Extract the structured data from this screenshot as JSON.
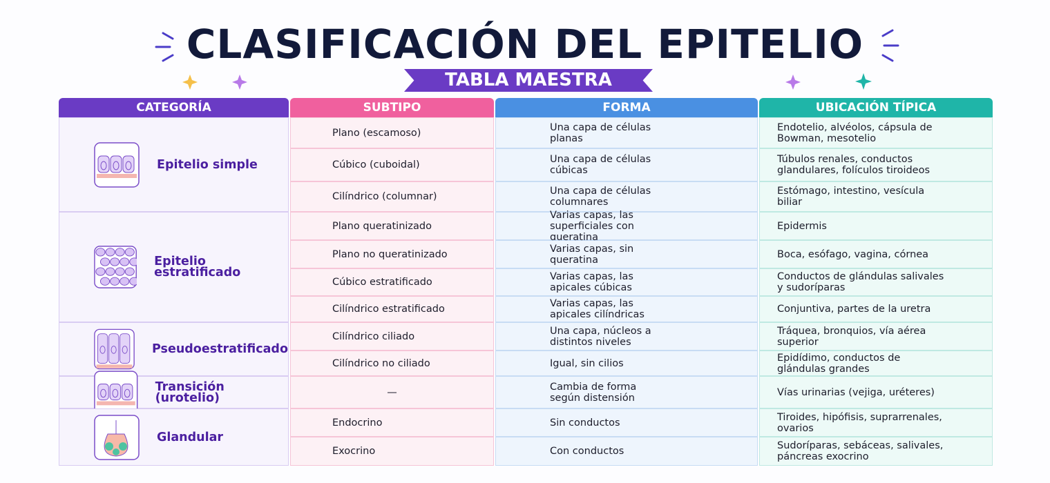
{
  "header": {
    "title": "CLASIFICACIÓN DEL EPITELIO",
    "subtitle": "TABLA MAESTRA"
  },
  "table": {
    "columns": [
      "CATEGORÍA",
      "SUBTIPO",
      "FORMA",
      "UBICACIÓN TÍPICA"
    ],
    "groups": [
      {
        "category": "Epitelio simple",
        "rows": [
          [
            "Plano (escamoso)",
            "Una capa de células planas",
            "Endotelio, alvéolos, cápsula de Bowman, mesotelio"
          ],
          [
            "Cúbico (cuboidal)",
            "Una capa de células cúbicas",
            "Túbulos renales, conductos glandulares, folículos tiroideos"
          ],
          [
            "Cilíndrico (columnar)",
            "Una capa de células columnares",
            "Estómago, intestino, vesícula biliar"
          ]
        ]
      },
      {
        "category": "Epitelio estratificado",
        "rows": [
          [
            "Plano queratinizado",
            "Varias capas, las superficiales con queratina",
            "Epidermis"
          ],
          [
            "Plano no queratinizado",
            "Varias capas, sin queratina",
            "Boca, esófago, vagina, córnea"
          ],
          [
            "Cúbico estratificado",
            "Varias capas, las apicales cúbicas",
            "Conductos de glándulas salivales y sudoríparas"
          ],
          [
            "Cilíndrico estratificado",
            "Varias capas, las apicales cilíndricas",
            "Conjuntiva, partes de la uretra"
          ]
        ]
      },
      {
        "category": "Pseudoestratificado",
        "rows": [
          [
            "Cilíndrico ciliado",
            "Una capa, núcleos a distintos niveles",
            "Tráquea, bronquios, vía aérea superior"
          ],
          [
            "Cilíndrico no ciliado",
            "Igual, sin cilios",
            "Epidídimo, conductos de glándulas grandes"
          ]
        ]
      },
      {
        "category": "Transición (urotelio)",
        "rows": [
          [
            "—",
            "Cambia de forma según distensión",
            "Vías urinarias (vejiga, uréteres)"
          ]
        ]
      },
      {
        "category": "Glandular",
        "rows": [
          [
            "Endocrino",
            "Sin conductos",
            "Tiroides, hipófisis, suprarrenales, ovarios"
          ],
          [
            "Exocrino",
            "Con conductos",
            "Sudoríparas, sebáceas, salivales, páncreas exocrino"
          ]
        ]
      }
    ]
  }
}
